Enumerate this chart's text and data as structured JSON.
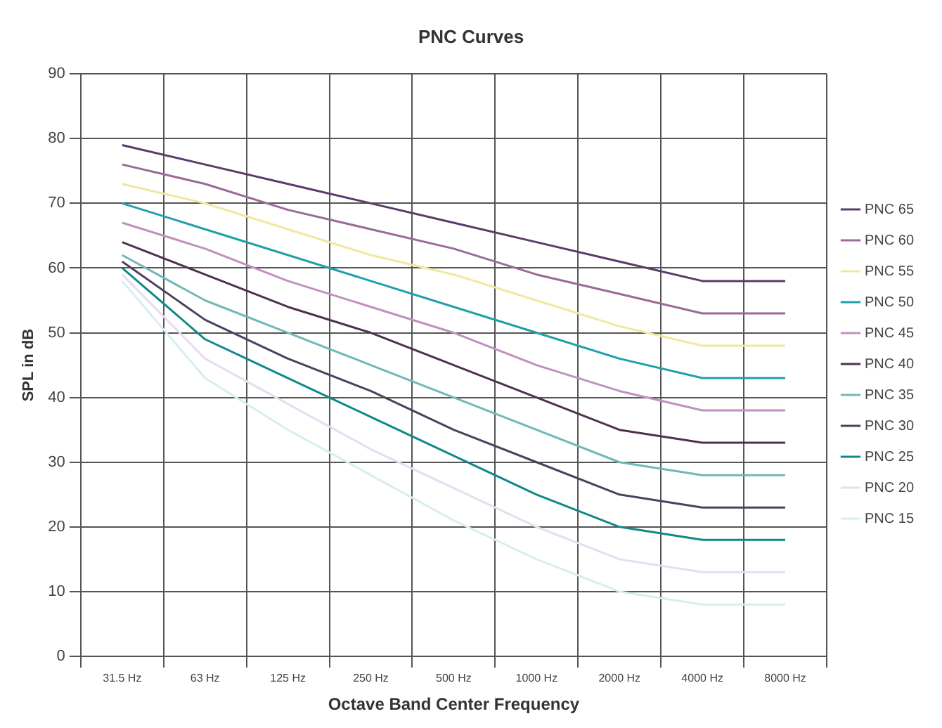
{
  "chart_data": {
    "type": "line",
    "title": "PNC Curves",
    "xlabel": "Octave Band Center Frequency",
    "ylabel": "SPL in dB",
    "categories": [
      "31.5 Hz",
      "63 Hz",
      "125 Hz",
      "250 Hz",
      "500 Hz",
      "1000 Hz",
      "2000 Hz",
      "4000 Hz",
      "8000 Hz"
    ],
    "ylim": [
      0,
      90
    ],
    "yticks": [
      0,
      10,
      20,
      30,
      40,
      50,
      60,
      70,
      80,
      90
    ],
    "grid": true,
    "legend": "right",
    "marker": "none",
    "line_style": "solid",
    "series": [
      {
        "name": "PNC 65",
        "color": "#5a3a6a",
        "values": [
          79,
          76,
          73,
          70,
          67,
          64,
          61,
          58,
          58
        ]
      },
      {
        "name": "PNC 60",
        "color": "#9a6a9a",
        "values": [
          76,
          73,
          69,
          66,
          63,
          59,
          56,
          53,
          53
        ]
      },
      {
        "name": "PNC 55",
        "color": "#f0e8a0",
        "values": [
          73,
          70,
          66,
          62,
          59,
          55,
          51,
          48,
          48
        ]
      },
      {
        "name": "PNC 50",
        "color": "#20a0a8",
        "values": [
          70,
          66,
          62,
          58,
          54,
          50,
          46,
          43,
          43
        ]
      },
      {
        "name": "PNC 45",
        "color": "#c090c0",
        "values": [
          67,
          63,
          58,
          54,
          50,
          45,
          41,
          38,
          38
        ]
      },
      {
        "name": "PNC 40",
        "color": "#503050",
        "values": [
          64,
          59,
          54,
          50,
          45,
          40,
          35,
          33,
          33
        ]
      },
      {
        "name": "PNC 35",
        "color": "#70b8b8",
        "values": [
          62,
          55,
          50,
          45,
          40,
          35,
          30,
          28,
          28
        ]
      },
      {
        "name": "PNC 30",
        "color": "#504060",
        "values": [
          61,
          52,
          46,
          41,
          35,
          30,
          25,
          23,
          23
        ]
      },
      {
        "name": "PNC 25",
        "color": "#108888",
        "values": [
          60,
          49,
          43,
          37,
          31,
          25,
          20,
          18,
          18
        ]
      },
      {
        "name": "PNC 20",
        "color": "#e8dcf0",
        "values": [
          59,
          46,
          39,
          32,
          26,
          20,
          15,
          13,
          13
        ]
      },
      {
        "name": "PNC 15",
        "color": "#d8eeee",
        "values": [
          58,
          43,
          35,
          28,
          21,
          15,
          10,
          8,
          8
        ]
      }
    ]
  }
}
